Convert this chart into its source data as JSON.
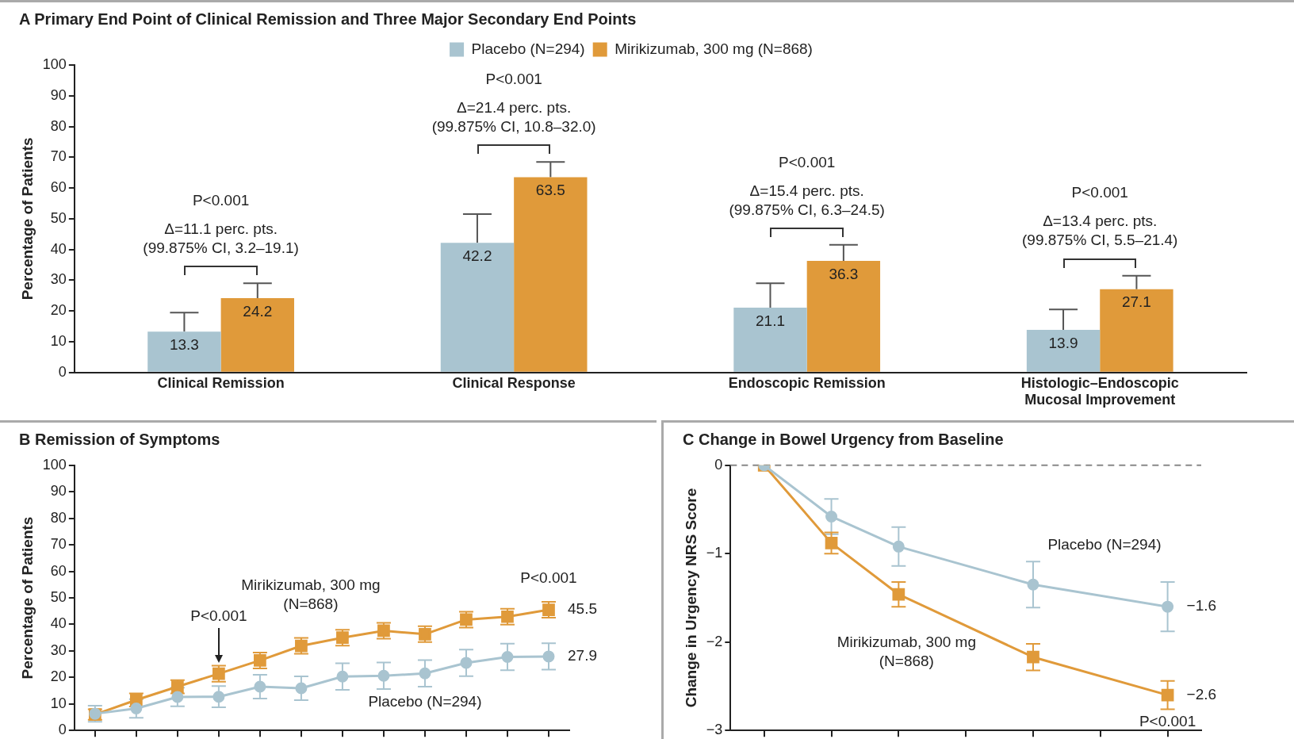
{
  "chart_data": [
    {
      "type": "bar",
      "title": "A Primary End Point of Clinical Remission and Three Major Secondary End Points",
      "ylabel": "Percentage of Patients",
      "categories": [
        "Clinical Remission",
        "Clinical Response",
        "Endoscopic Remission",
        "Histologic–Endoscopic Mucosal Improvement"
      ],
      "series": [
        {
          "name": "Placebo (N=294)",
          "color": "#a9c4d0",
          "values": [
            13.3,
            42.2,
            21.1,
            13.9
          ],
          "errors": [
            [
              13.3,
              19.5
            ],
            [
              42.2,
              51.5
            ],
            [
              21.1,
              29
            ],
            [
              13.9,
              20.5
            ]
          ]
        },
        {
          "name": "Mirikizumab, 300 mg (N=868)",
          "color": "#e09a3a",
          "values": [
            24.2,
            63.5,
            36.3,
            27.1
          ],
          "errors": [
            [
              24.2,
              29
            ],
            [
              63.5,
              68.5
            ],
            [
              36.3,
              41.5
            ],
            [
              27.1,
              31.5
            ]
          ]
        }
      ],
      "ylim": [
        0,
        100
      ],
      "yticks": [
        0,
        10,
        20,
        30,
        40,
        50,
        60,
        70,
        80,
        90,
        100
      ],
      "data_labels": true,
      "legend": "top",
      "grid": false,
      "annotations": [
        "P<0.001\nΔ=11.1 perc. pts.\n(99.875% CI, 3.2–19.1)",
        "P<0.001\nΔ=21.4 perc. pts.\n(99.875% CI, 10.8–32.0)",
        "P<0.001\nΔ=15.4 perc. pts.\n(99.875% CI, 6.3–24.5)",
        "P<0.001\nΔ=13.4 perc. pts.\n(99.875% CI, 5.5–21.4)"
      ]
    },
    {
      "type": "line",
      "title": "B Remission of Symptoms",
      "ylabel": "Percentage of Patients",
      "categories": [
        null,
        null,
        null,
        null,
        null,
        null,
        null,
        null,
        null,
        null,
        null,
        null
      ],
      "series": [
        {
          "name": "Placebo (N=294)",
          "color": "#a9c4d0",
          "marker": "circle",
          "values": [
            6.3,
            8.3,
            12.6,
            12.7,
            16.5,
            15.9,
            20.3,
            20.6,
            21.5,
            25.5,
            27.7,
            27.9
          ],
          "errors": [
            3,
            3.5,
            3.5,
            4,
            4.5,
            4.5,
            5,
            5,
            5,
            5,
            5,
            5
          ],
          "value_labels": [
            null,
            null,
            null,
            null,
            null,
            null,
            null,
            null,
            null,
            null,
            null,
            "27.9"
          ]
        },
        {
          "name": "Mirikizumab, 300 mg (N=868)",
          "color": "#e09a3a",
          "marker": "square",
          "values": [
            6,
            11.5,
            16.5,
            21.4,
            26.4,
            31.9,
            35,
            37.6,
            36.3,
            41.8,
            42.9,
            45.5
          ],
          "errors": [
            2,
            2.5,
            2.5,
            3,
            3,
            3,
            3,
            3,
            3,
            3,
            3,
            3
          ],
          "value_labels": [
            null,
            null,
            null,
            null,
            null,
            null,
            null,
            null,
            null,
            null,
            null,
            "45.5"
          ]
        }
      ],
      "ylim": [
        0,
        100
      ],
      "yticks": [
        0,
        10,
        20,
        30,
        40,
        50,
        60,
        70,
        80,
        90,
        100
      ],
      "tick_labels": "y",
      "grid": false,
      "line_style": "solid",
      "annotations": [
        "P<0.001",
        "P<0.001"
      ]
    },
    {
      "type": "line",
      "title": "C Change in Bowel Urgency from Baseline",
      "ylabel": "Change in Urgency NRS Score",
      "categories": [
        null,
        null,
        null,
        null,
        null,
        null,
        null
      ],
      "series": [
        {
          "name": "Placebo (N=294)",
          "color": "#a9c4d0",
          "marker": "circle",
          "values": [
            0,
            -0.58,
            -0.92,
            null,
            -1.35,
            null,
            -1.6
          ],
          "errors": [
            null,
            0.2,
            0.22,
            null,
            0.26,
            null,
            0.28
          ],
          "value_labels": [
            null,
            null,
            null,
            null,
            null,
            null,
            "−1.6"
          ]
        },
        {
          "name": "Mirikizumab, 300 mg (N=868)",
          "color": "#e09a3a",
          "marker": "square",
          "values": [
            0,
            -0.88,
            -1.46,
            null,
            -2.17,
            null,
            -2.6
          ],
          "errors": [
            null,
            0.12,
            0.14,
            null,
            0.15,
            null,
            0.16
          ],
          "value_labels": [
            null,
            null,
            null,
            null,
            null,
            null,
            "−2.6"
          ]
        }
      ],
      "ylim": [
        -3,
        0
      ],
      "yticks": [
        {
          "value": 0,
          "label": "0"
        },
        {
          "value": -1,
          "label": "−1"
        },
        {
          "value": -2,
          "label": "−2"
        },
        {
          "value": -3,
          "label": "−3"
        }
      ],
      "tick_labels": "y",
      "grid": false,
      "line_style": "solid",
      "ref_lines": [
        {
          "axis": "y",
          "value": 0,
          "color": "#888888",
          "line_style": "dashed"
        }
      ],
      "annotations": [
        "P<0.001"
      ]
    }
  ]
}
